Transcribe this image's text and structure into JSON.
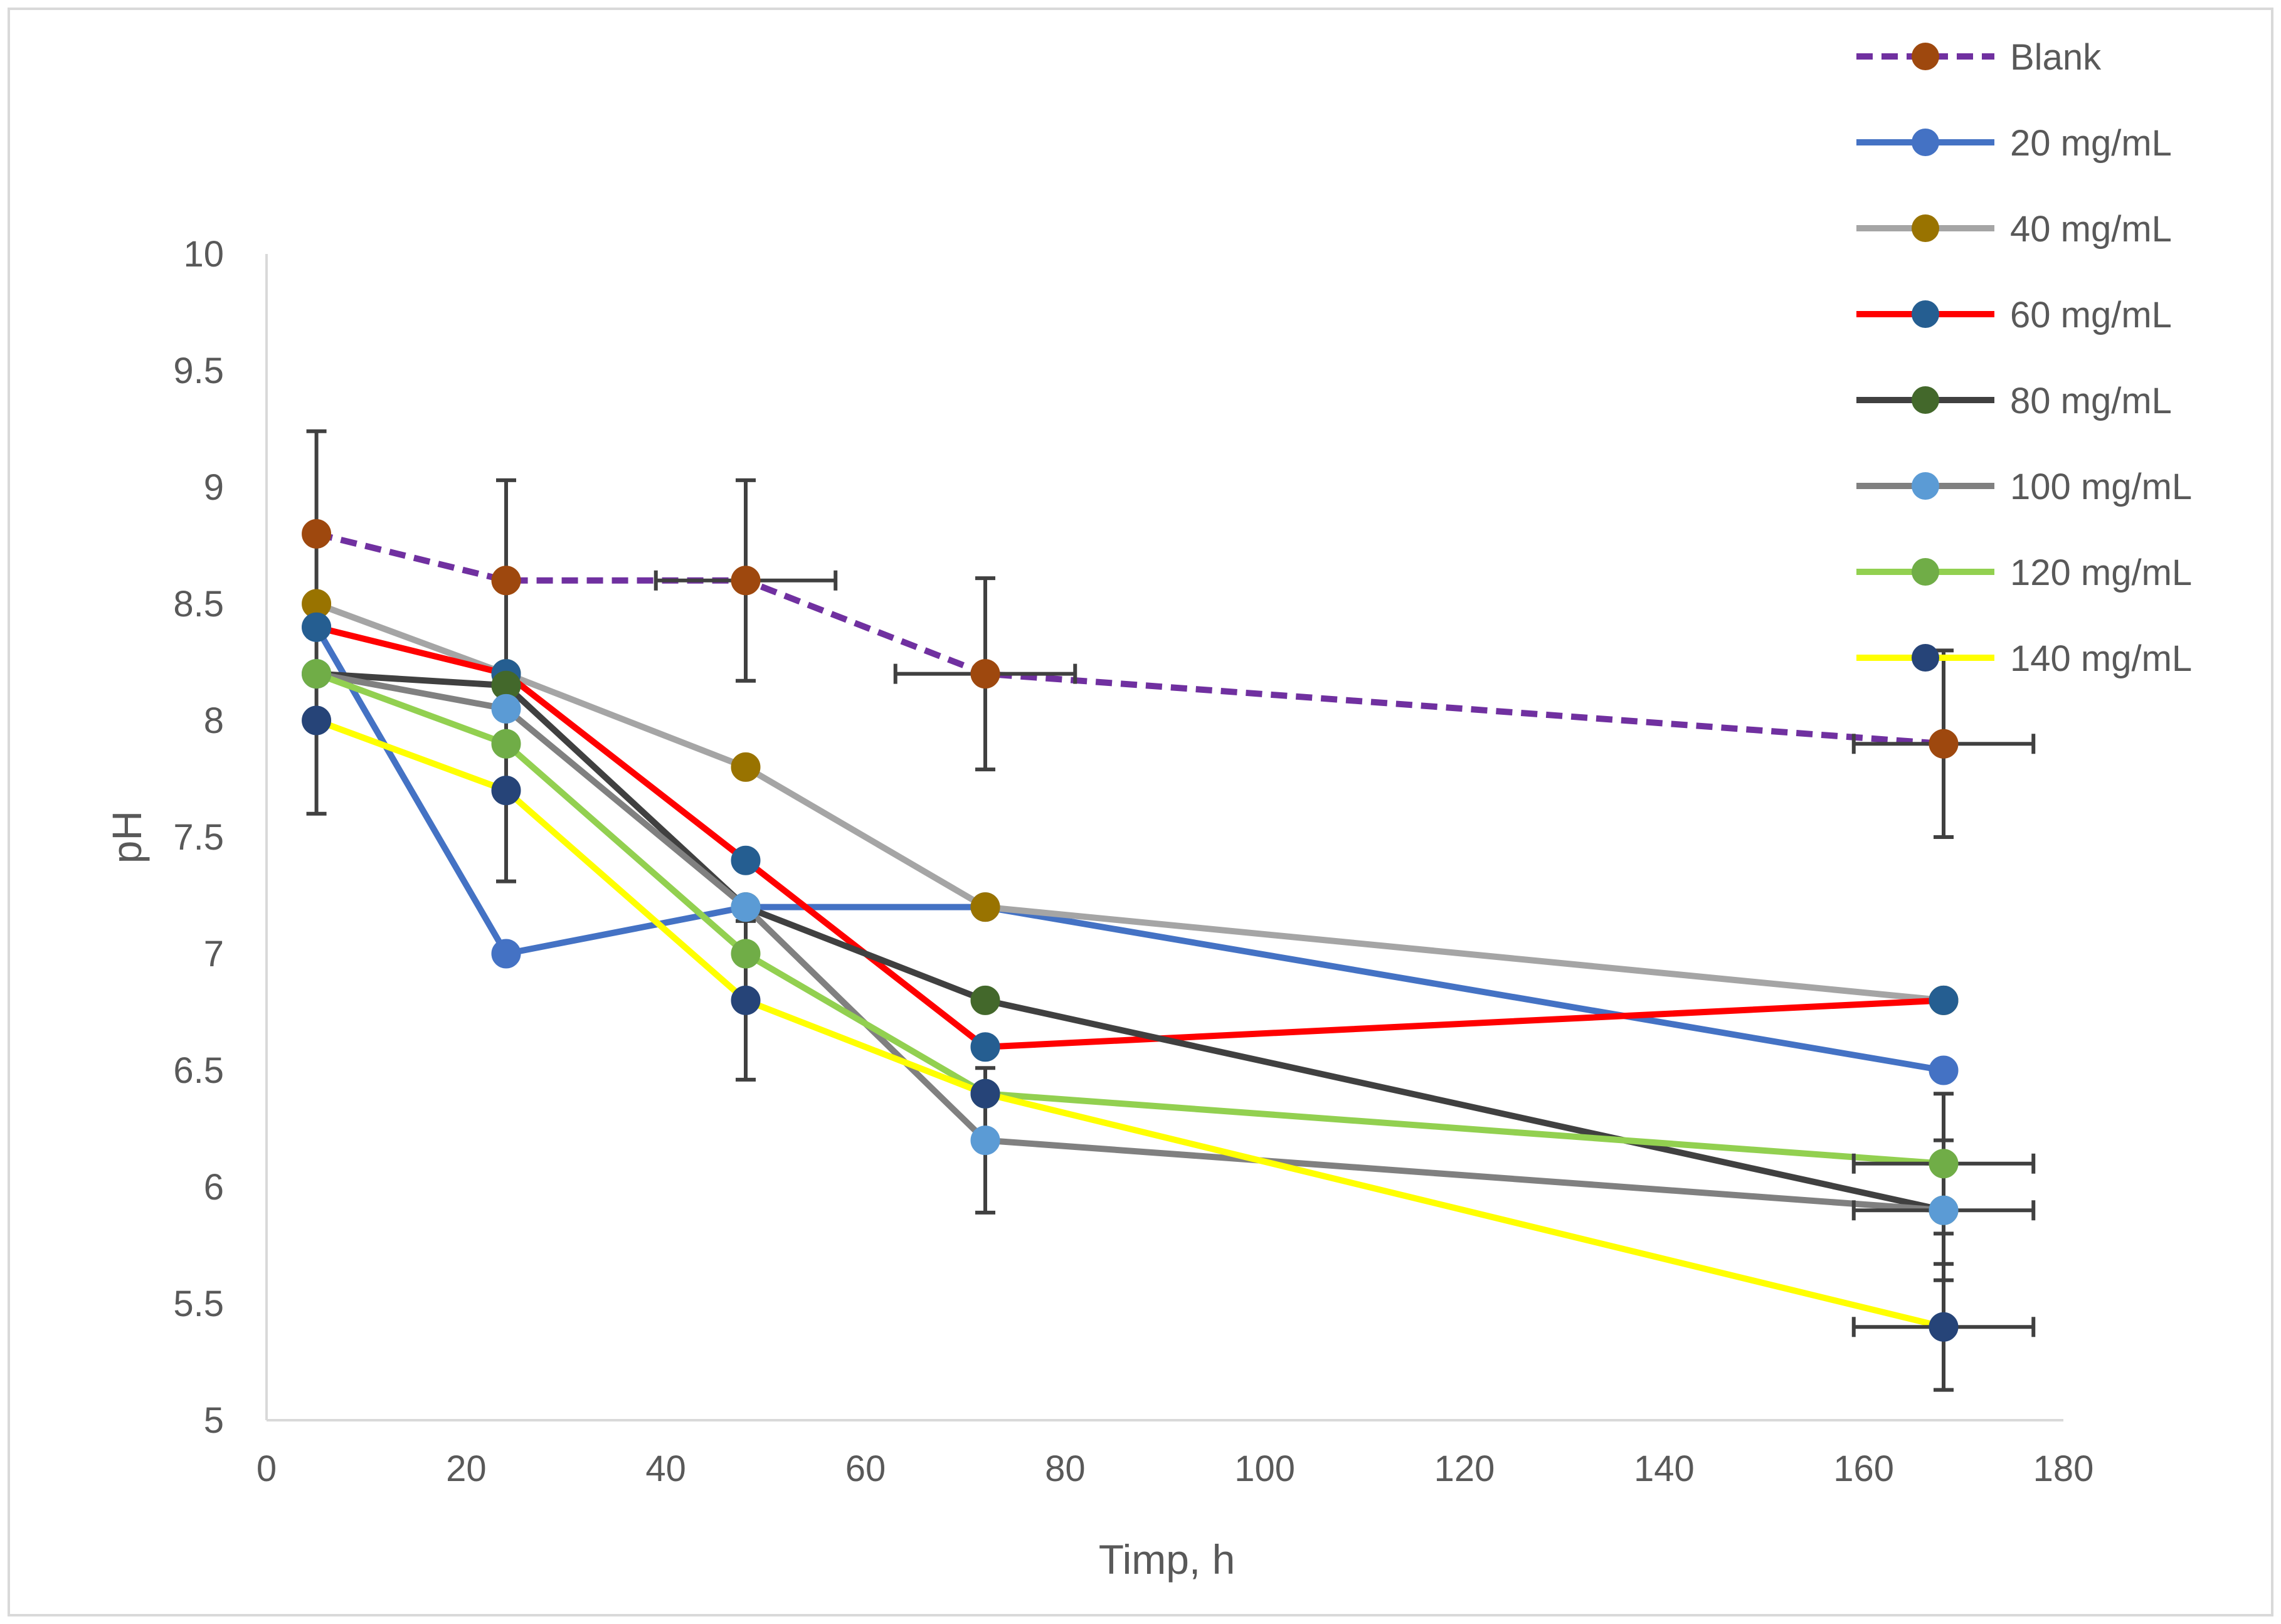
{
  "chart_data": {
    "type": "line",
    "title": "",
    "xlabel": "Timp, h",
    "ylabel": "pH",
    "xlim": [
      0,
      180
    ],
    "ylim": [
      5,
      10
    ],
    "xticks": [
      0,
      20,
      40,
      60,
      80,
      100,
      120,
      140,
      160,
      180
    ],
    "yticks": [
      5,
      5.5,
      6,
      6.5,
      7,
      7.5,
      8,
      8.5,
      9,
      9.5,
      10
    ],
    "grid": false,
    "legend_position": "top-right",
    "x": [
      5,
      24,
      48,
      72,
      168
    ],
    "series": [
      {
        "name": "Blank",
        "values": [
          8.8,
          8.6,
          8.6,
          8.2,
          7.9
        ],
        "line_color": "#7030a0",
        "marker_color": "#9e480e",
        "dashed": true,
        "y_error": [
          0.44,
          0.43,
          0.43,
          0.41,
          0.4
        ],
        "x_error": [
          0,
          0,
          9,
          9,
          9
        ]
      },
      {
        "name": "20 mg/mL",
        "values": [
          8.4,
          7.0,
          7.2,
          7.2,
          6.5
        ],
        "line_color": "#4472c4",
        "marker_color": "#4472c4",
        "dashed": false
      },
      {
        "name": "40 mg/mL",
        "values": [
          8.5,
          8.2,
          7.8,
          7.2,
          6.8
        ],
        "line_color": "#a5a5a5",
        "marker_color": "#997300",
        "dashed": false
      },
      {
        "name": "60 mg/mL",
        "values": [
          8.4,
          8.2,
          7.4,
          6.6,
          6.8
        ],
        "line_color": "#ff0000",
        "marker_color": "#255e91",
        "dashed": false
      },
      {
        "name": "80 mg/mL",
        "values": [
          8.2,
          8.15,
          7.2,
          6.8,
          5.9
        ],
        "line_color": "#404040",
        "marker_color": "#43682b",
        "dashed": false
      },
      {
        "name": "100 mg/mL",
        "values": [
          8.2,
          8.05,
          7.2,
          6.2,
          5.9
        ],
        "line_color": "#808080",
        "marker_color": "#5b9bd5",
        "dashed": false,
        "y_error": [
          0,
          0,
          0,
          0.31,
          0.3
        ],
        "x_error": [
          0,
          0,
          0,
          0,
          9
        ]
      },
      {
        "name": "120 mg/mL",
        "values": [
          8.2,
          7.9,
          7.0,
          6.4,
          6.1
        ],
        "line_color": "#92d050",
        "marker_color": "#70ad47",
        "dashed": false,
        "y_error": [
          0,
          0,
          0,
          0,
          0.3
        ],
        "x_error": [
          0,
          0,
          0,
          0,
          9
        ]
      },
      {
        "name": "140 mg/mL",
        "values": [
          8.0,
          7.7,
          6.8,
          6.4,
          5.4
        ],
        "line_color": "#ffff00",
        "marker_color": "#264478",
        "dashed": false,
        "y_error": [
          0.4,
          0.39,
          0.34,
          0,
          0.27
        ],
        "x_error": [
          0,
          0,
          0,
          0,
          9
        ]
      }
    ]
  }
}
